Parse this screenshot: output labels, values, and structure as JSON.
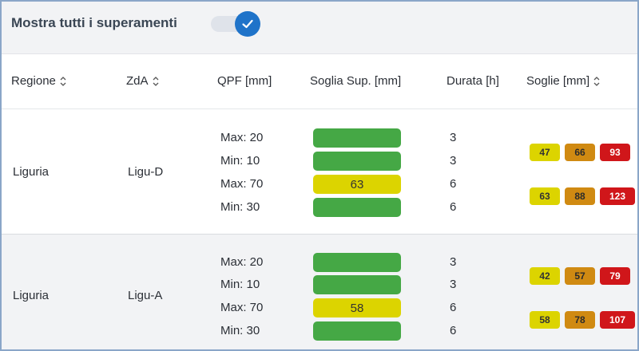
{
  "toggle": {
    "label": "Mostra tutti i superamenti",
    "checked": true,
    "color": "#1f73c9"
  },
  "columns": [
    {
      "label": "Regione",
      "sortable": true
    },
    {
      "label": "ZdA",
      "sortable": true
    },
    {
      "label": "QPF [mm]",
      "sortable": false
    },
    {
      "label": "Soglia Sup. [mm]",
      "sortable": false
    },
    {
      "label": "Durata [h]",
      "sortable": false
    },
    {
      "label": "Soglie [mm]",
      "sortable": true
    }
  ],
  "colors": {
    "green": "#45a845",
    "yellow": "#dcd400",
    "orange": "#d08a12",
    "red": "#d0161a"
  },
  "groups": [
    {
      "region": "Liguria",
      "zda": "Ligu-D",
      "rows": [
        {
          "qpf": "Max: 20",
          "bar_color": "green",
          "bar_text": "",
          "duration": "3"
        },
        {
          "qpf": "Min: 10",
          "bar_color": "green",
          "bar_text": "",
          "duration": "3"
        },
        {
          "qpf": "Max: 70",
          "bar_color": "yellow",
          "bar_text": "63",
          "duration": "6"
        },
        {
          "qpf": "Min: 30",
          "bar_color": "green",
          "bar_text": "",
          "duration": "6"
        }
      ],
      "thresholds": [
        [
          "47",
          "66",
          "93"
        ],
        [
          "63",
          "88",
          "123"
        ]
      ]
    },
    {
      "region": "Liguria",
      "zda": "Ligu-A",
      "rows": [
        {
          "qpf": "Max: 20",
          "bar_color": "green",
          "bar_text": "",
          "duration": "3"
        },
        {
          "qpf": "Min: 10",
          "bar_color": "green",
          "bar_text": "",
          "duration": "3"
        },
        {
          "qpf": "Max: 70",
          "bar_color": "yellow",
          "bar_text": "58",
          "duration": "6"
        },
        {
          "qpf": "Min: 30",
          "bar_color": "green",
          "bar_text": "",
          "duration": "6"
        }
      ],
      "thresholds": [
        [
          "42",
          "57",
          "79"
        ],
        [
          "58",
          "78",
          "107"
        ]
      ]
    }
  ]
}
